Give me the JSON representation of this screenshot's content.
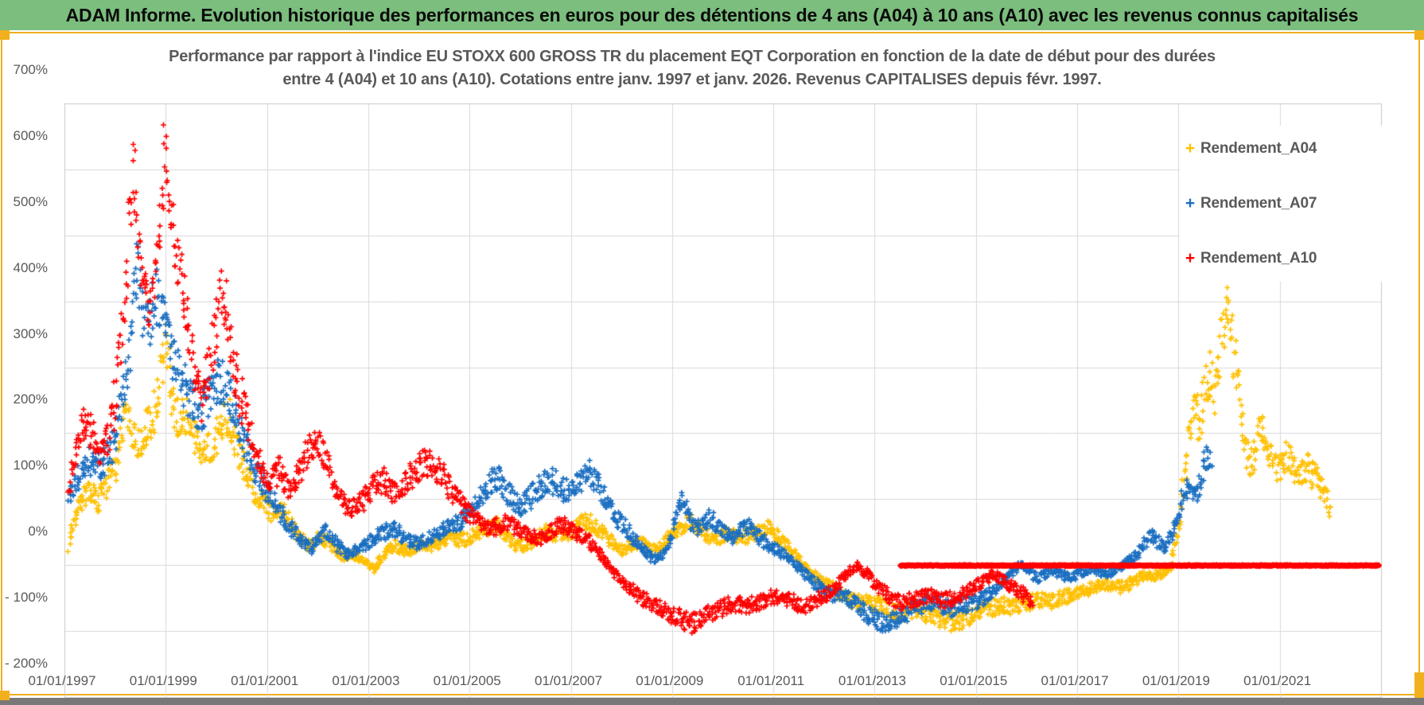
{
  "header": {
    "title": "ADAM Informe. Evolution historique des performances en euros pour des détentions de 4 ans (A04) à 10 ans (A10) avec les revenus connus capitalisés"
  },
  "chart": {
    "title_line1": "Performance par rapport à l'indice EU STOXX 600 GROSS TR  du placement EQT Corporation en fonction de la date de début pour des durées",
    "title_line2": "entre 4 (A04) et 10 ans (A10).  Cotations entre janv. 1997 et janv. 2026.  Revenus CAPITALISES depuis févr. 1997."
  },
  "chart_data": {
    "type": "scatter",
    "marker": "plus",
    "grid": true,
    "legend_position": "right-top",
    "x_axis": {
      "start": 1997.0,
      "end": 2023.0,
      "tick_years": [
        1997,
        1999,
        2001,
        2003,
        2005,
        2007,
        2009,
        2011,
        2013,
        2015,
        2017,
        2019,
        2021
      ],
      "tick_labels": [
        "01/01/1997",
        "01/01/1999",
        "01/01/2001",
        "01/01/2003",
        "01/01/2005",
        "01/01/2007",
        "01/01/2009",
        "01/01/2011",
        "01/01/2013",
        "01/01/2015",
        "01/01/2017",
        "01/01/2019",
        "01/01/2021"
      ]
    },
    "y_axis": {
      "min": -200,
      "max": 700,
      "tick_step": 100,
      "unit": "%",
      "tick_values": [
        700,
        600,
        500,
        400,
        300,
        200,
        100,
        0,
        -100,
        -200
      ],
      "tick_labels": [
        "700%",
        "600%",
        "500%",
        "400%",
        "300%",
        "200%",
        "100%",
        "0%",
        "- 100%",
        "- 200%"
      ]
    },
    "legend": [
      {
        "label": "Rendement_A04",
        "color": "#FFC000"
      },
      {
        "label": "Rendement_A07",
        "color": "#1B6FC1"
      },
      {
        "label": "Rendement_A10",
        "color": "#FF0000"
      }
    ],
    "series": [
      {
        "name": "Rendement_A04",
        "color": "#FFC000",
        "points_yv": [
          1997.08,
          30,
          1997.2,
          70,
          1997.35,
          100,
          1997.5,
          110,
          1997.65,
          95,
          1997.8,
          120,
          1998.0,
          150,
          1998.1,
          190,
          1998.2,
          235,
          1998.3,
          210,
          1998.45,
          185,
          1998.6,
          210,
          1998.75,
          225,
          1998.9,
          285,
          1999.0,
          330,
          1999.1,
          250,
          1999.25,
          220,
          1999.4,
          230,
          1999.55,
          200,
          1999.7,
          165,
          1999.85,
          180,
          2000.0,
          195,
          2000.15,
          220,
          2000.25,
          225,
          2000.4,
          175,
          2000.55,
          150,
          2000.7,
          120,
          2000.85,
          100,
          2001.0,
          88,
          2001.15,
          75,
          2001.3,
          85,
          2001.45,
          65,
          2001.6,
          48,
          2001.75,
          30,
          2001.9,
          32,
          2002.05,
          45,
          2002.2,
          35,
          2002.35,
          25,
          2002.5,
          12,
          2002.65,
          15,
          2002.8,
          12,
          2002.95,
          5,
          2003.1,
          -5,
          2003.25,
          10,
          2003.4,
          25,
          2003.55,
          30,
          2003.7,
          22,
          2003.85,
          25,
          2004.0,
          32,
          2004.2,
          28,
          2004.4,
          35,
          2004.6,
          45,
          2004.8,
          38,
          2005.0,
          42,
          2005.2,
          52,
          2005.4,
          58,
          2005.55,
          60,
          2005.7,
          45,
          2005.9,
          30,
          2006.1,
          30,
          2006.3,
          42,
          2006.5,
          52,
          2006.7,
          46,
          2006.9,
          45,
          2007.1,
          58,
          2007.3,
          68,
          2007.45,
          60,
          2007.6,
          52,
          2007.8,
          35,
          2008.0,
          22,
          2008.2,
          32,
          2008.4,
          35,
          2008.6,
          22,
          2008.8,
          32,
          2009.0,
          48,
          2009.2,
          62,
          2009.35,
          70,
          2009.5,
          58,
          2009.7,
          45,
          2009.9,
          42,
          2010.1,
          50,
          2010.3,
          42,
          2010.5,
          45,
          2010.7,
          52,
          2010.9,
          58,
          2011.1,
          42,
          2011.3,
          25,
          2011.5,
          8,
          2011.7,
          -8,
          2011.9,
          -22,
          2012.1,
          -32,
          2012.3,
          -42,
          2012.5,
          -50,
          2012.7,
          -58,
          2012.9,
          -55,
          2013.1,
          -58,
          2013.3,
          -66,
          2013.5,
          -72,
          2013.7,
          -68,
          2013.9,
          -70,
          2014.1,
          -76,
          2014.3,
          -84,
          2014.5,
          -86,
          2014.7,
          -82,
          2014.9,
          -76,
          2015.1,
          -70,
          2015.3,
          -64,
          2015.5,
          -60,
          2015.7,
          -62,
          2015.9,
          -58,
          2016.1,
          -55,
          2016.3,
          -53,
          2016.5,
          -55,
          2016.7,
          -49,
          2016.9,
          -45,
          2017.1,
          -40,
          2017.3,
          -33,
          2017.5,
          -28,
          2017.7,
          -32,
          2017.9,
          -33,
          2018.1,
          -24,
          2018.3,
          -14,
          2018.5,
          -16,
          2018.7,
          -10,
          2018.85,
          -2,
          2019.0,
          55,
          2019.1,
          130,
          2019.2,
          195,
          2019.3,
          245,
          2019.4,
          215,
          2019.5,
          255,
          2019.6,
          295,
          2019.7,
          265,
          2019.8,
          315,
          2019.9,
          365,
          2019.98,
          395,
          2020.05,
          345,
          2020.15,
          285,
          2020.25,
          215,
          2020.35,
          165,
          2020.45,
          155,
          2020.55,
          190,
          2020.65,
          215,
          2020.75,
          180,
          2020.85,
          155,
          2020.95,
          142,
          2021.05,
          158,
          2021.15,
          165,
          2021.25,
          148,
          2021.35,
          132,
          2021.45,
          142,
          2021.55,
          150,
          2021.65,
          138,
          2021.75,
          126,
          2021.85,
          115,
          2021.95,
          92,
          2022.0,
          75
        ]
      },
      {
        "name": "Rendement_A07",
        "color": "#1B6FC1",
        "points_yv": [
          1997.08,
          100,
          1997.2,
          118,
          1997.35,
          148,
          1997.5,
          162,
          1997.65,
          148,
          1997.8,
          160,
          1997.95,
          185,
          1998.05,
          215,
          1998.15,
          255,
          1998.25,
          310,
          1998.35,
          400,
          1998.42,
          460,
          1998.5,
          420,
          1998.6,
          355,
          1998.7,
          380,
          1998.8,
          415,
          1998.9,
          385,
          1999.0,
          355,
          1999.1,
          325,
          1999.25,
          295,
          1999.4,
          268,
          1999.55,
          245,
          1999.7,
          235,
          1999.85,
          252,
          2000.0,
          268,
          2000.1,
          285,
          2000.2,
          262,
          2000.35,
          228,
          2000.5,
          195,
          2000.65,
          170,
          2000.8,
          142,
          2000.95,
          118,
          2001.1,
          98,
          2001.25,
          80,
          2001.4,
          66,
          2001.55,
          50,
          2001.7,
          35,
          2001.85,
          26,
          2002.0,
          40,
          2002.15,
          52,
          2002.3,
          38,
          2002.45,
          25,
          2002.6,
          16,
          2002.75,
          22,
          2002.9,
          30,
          2003.05,
          38,
          2003.2,
          45,
          2003.35,
          52,
          2003.5,
          56,
          2003.65,
          46,
          2003.8,
          38,
          2003.95,
          33,
          2004.1,
          36,
          2004.25,
          44,
          2004.4,
          50,
          2004.55,
          56,
          2004.7,
          62,
          2004.85,
          70,
          2005.0,
          80,
          2005.15,
          95,
          2005.3,
          110,
          2005.45,
          128,
          2005.55,
          136,
          2005.7,
          116,
          2005.85,
          98,
          2006.0,
          90,
          2006.15,
          100,
          2006.3,
          112,
          2006.45,
          122,
          2006.6,
          130,
          2006.75,
          121,
          2006.9,
          112,
          2007.05,
          120,
          2007.2,
          132,
          2007.35,
          140,
          2007.5,
          124,
          2007.65,
          104,
          2007.8,
          84,
          2007.95,
          68,
          2008.1,
          54,
          2008.25,
          40,
          2008.4,
          26,
          2008.55,
          14,
          2008.7,
          8,
          2008.85,
          22,
          2009.0,
          48,
          2009.1,
          78,
          2009.2,
          105,
          2009.3,
          78,
          2009.45,
          55,
          2009.6,
          66,
          2009.75,
          72,
          2009.9,
          58,
          2010.05,
          47,
          2010.2,
          42,
          2010.35,
          52,
          2010.5,
          58,
          2010.65,
          47,
          2010.8,
          37,
          2010.95,
          29,
          2011.1,
          21,
          2011.25,
          14,
          2011.4,
          4,
          2011.55,
          -9,
          2011.7,
          -19,
          2011.85,
          -29,
          2012.0,
          -40,
          2012.15,
          -45,
          2012.3,
          -41,
          2012.45,
          -48,
          2012.6,
          -56,
          2012.75,
          -66,
          2012.9,
          -76,
          2013.05,
          -83,
          2013.2,
          -87,
          2013.35,
          -84,
          2013.5,
          -79,
          2013.65,
          -71,
          2013.8,
          -64,
          2013.95,
          -59,
          2014.1,
          -55,
          2014.25,
          -58,
          2014.4,
          -62,
          2014.55,
          -65,
          2014.7,
          -62,
          2014.85,
          -57,
          2015.0,
          -54,
          2015.15,
          -49,
          2015.3,
          -41,
          2015.45,
          -29,
          2015.6,
          -17,
          2015.75,
          -7,
          2015.88,
          2,
          2016.0,
          -6,
          2016.1,
          -14,
          2016.2,
          -19,
          2016.35,
          -12,
          2016.5,
          -8,
          2016.65,
          -13,
          2016.8,
          -19,
          2016.95,
          -14,
          2017.1,
          -9,
          2017.25,
          -4,
          2017.4,
          -9,
          2017.55,
          -13,
          2017.7,
          -7,
          2017.85,
          -2,
          2018.0,
          6,
          2018.15,
          16,
          2018.3,
          32,
          2018.45,
          46,
          2018.6,
          33,
          2018.72,
          24,
          2018.85,
          48,
          2019.0,
          85,
          2019.15,
          120,
          2019.3,
          100,
          2019.45,
          135,
          2019.55,
          168,
          2019.65,
          150
        ]
      },
      {
        "name": "Rendement_A10",
        "color": "#FF0000",
        "flat_zero": {
          "from": 2013.5,
          "to": 2022.95
        },
        "points_yv": [
          1997.08,
          115,
          1997.18,
          160,
          1997.28,
          198,
          1997.4,
          215,
          1997.52,
          205,
          1997.64,
          188,
          1997.75,
          168,
          1997.87,
          196,
          1998.0,
          255,
          1998.1,
          330,
          1998.2,
          425,
          1998.3,
          545,
          1998.36,
          605,
          1998.44,
          515,
          1998.54,
          440,
          1998.64,
          390,
          1998.74,
          425,
          1998.84,
          475,
          1998.92,
          555,
          1998.97,
          650,
          1999.03,
          590,
          1999.1,
          525,
          1999.2,
          470,
          1999.3,
          430,
          1999.4,
          388,
          1999.5,
          338,
          1999.6,
          278,
          1999.7,
          250,
          1999.8,
          282,
          1999.9,
          320,
          2000.0,
          362,
          2000.08,
          415,
          2000.18,
          392,
          2000.28,
          330,
          2000.4,
          278,
          2000.52,
          242,
          2000.64,
          210,
          2000.76,
          178,
          2000.88,
          148,
          2001.0,
          126,
          2001.12,
          136,
          2001.24,
          145,
          2001.36,
          128,
          2001.48,
          115,
          2001.6,
          138,
          2001.72,
          158,
          2001.84,
          178,
          2001.95,
          196,
          2002.07,
          178,
          2002.19,
          155,
          2002.31,
          128,
          2002.43,
          108,
          2002.55,
          95,
          2002.67,
          85,
          2002.79,
          92,
          2002.91,
          102,
          2003.03,
          115,
          2003.15,
          125,
          2003.27,
          130,
          2003.39,
          120,
          2003.51,
          110,
          2003.63,
          120,
          2003.75,
          130,
          2003.87,
          140,
          2003.99,
          150,
          2004.11,
          160,
          2004.23,
          155,
          2004.35,
          147,
          2004.47,
          135,
          2004.59,
          120,
          2004.71,
          105,
          2004.83,
          93,
          2004.95,
          82,
          2005.07,
          74,
          2005.19,
          66,
          2005.31,
          58,
          2005.43,
          55,
          2005.55,
          60,
          2005.67,
          67,
          2005.79,
          62,
          2005.91,
          57,
          2006.03,
          53,
          2006.15,
          48,
          2006.27,
          43,
          2006.39,
          40,
          2006.51,
          46,
          2006.63,
          53,
          2006.75,
          60,
          2006.87,
          61,
          2006.99,
          56,
          2007.11,
          50,
          2007.23,
          44,
          2007.35,
          36,
          2007.47,
          27,
          2007.59,
          15,
          2007.71,
          3,
          2007.83,
          -9,
          2007.95,
          -20,
          2008.07,
          -28,
          2008.19,
          -36,
          2008.31,
          -44,
          2008.43,
          -51,
          2008.55,
          -57,
          2008.67,
          -62,
          2008.79,
          -66,
          2008.91,
          -71,
          2009.03,
          -76,
          2009.15,
          -81,
          2009.27,
          -86,
          2009.35,
          -89,
          2009.47,
          -85,
          2009.59,
          -80,
          2009.71,
          -75,
          2009.83,
          -70,
          2009.95,
          -65,
          2010.07,
          -61,
          2010.19,
          -58,
          2010.33,
          -60,
          2010.47,
          -62,
          2010.61,
          -58,
          2010.75,
          -54,
          2010.89,
          -50,
          2011.03,
          -46,
          2011.17,
          -49,
          2011.31,
          -53,
          2011.45,
          -57,
          2011.59,
          -60,
          2011.73,
          -57,
          2011.87,
          -52,
          2012.0,
          -47,
          2012.14,
          -38,
          2012.28,
          -26,
          2012.42,
          -13,
          2012.56,
          -4,
          2012.66,
          0,
          2012.78,
          -8,
          2012.9,
          -18,
          2013.02,
          -28,
          2013.14,
          -38,
          2013.26,
          -46,
          2013.38,
          -52,
          2013.5,
          -56,
          2013.64,
          -54,
          2013.78,
          -51,
          2013.92,
          -48,
          2014.06,
          -45,
          2014.2,
          -49,
          2014.34,
          -54,
          2014.48,
          -51,
          2014.62,
          -47,
          2014.76,
          -43,
          2014.9,
          -37,
          2015.04,
          -28,
          2015.18,
          -20,
          2015.32,
          -14,
          2015.46,
          -19,
          2015.6,
          -27,
          2015.74,
          -34,
          2015.88,
          -42,
          2016.02,
          -48,
          2016.1,
          -52
        ]
      }
    ],
    "colors": {
      "grid": "#D9D9D9",
      "axis_text": "#595959",
      "plot_border": "#C9C9C9"
    }
  }
}
